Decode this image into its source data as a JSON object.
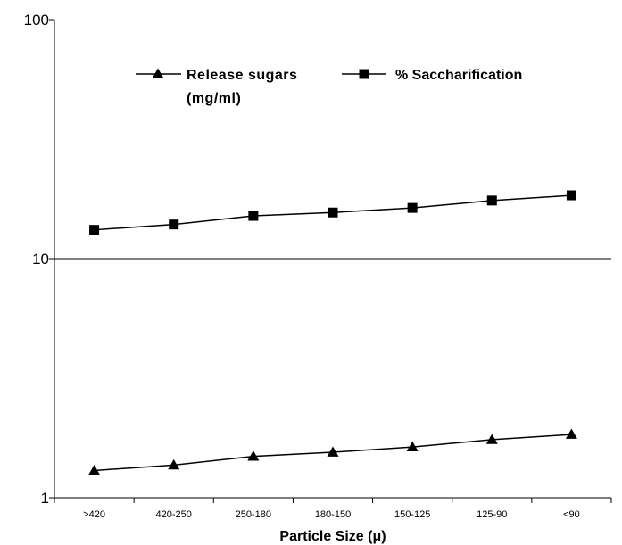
{
  "chart_data": {
    "type": "line",
    "title": "",
    "xlabel": "Particle Size (μ)",
    "ylabel": "",
    "y_scale": "log",
    "ylim": [
      1,
      100
    ],
    "y_ticks": [
      "1",
      "10",
      "100"
    ],
    "gridlines": "horizontal at 10",
    "legend_position": "top",
    "categories": [
      ">420",
      "420-250",
      "250-180",
      "180-150",
      "150-125",
      "125-90",
      "<90"
    ],
    "series": [
      {
        "name": "Release sugars (mg/ml)",
        "legend_lines": [
          "Release sugars",
          "(mg/ml)"
        ],
        "marker": "triangle",
        "values": [
          1.3,
          1.37,
          1.49,
          1.55,
          1.63,
          1.75,
          1.84
        ]
      },
      {
        "name": "% Saccharification",
        "legend_lines": [
          "% Saccharification"
        ],
        "marker": "square",
        "values": [
          13.2,
          13.9,
          15.1,
          15.6,
          16.3,
          17.5,
          18.4
        ]
      }
    ],
    "colors": {
      "line": "#000000",
      "marker": "#000000"
    }
  }
}
